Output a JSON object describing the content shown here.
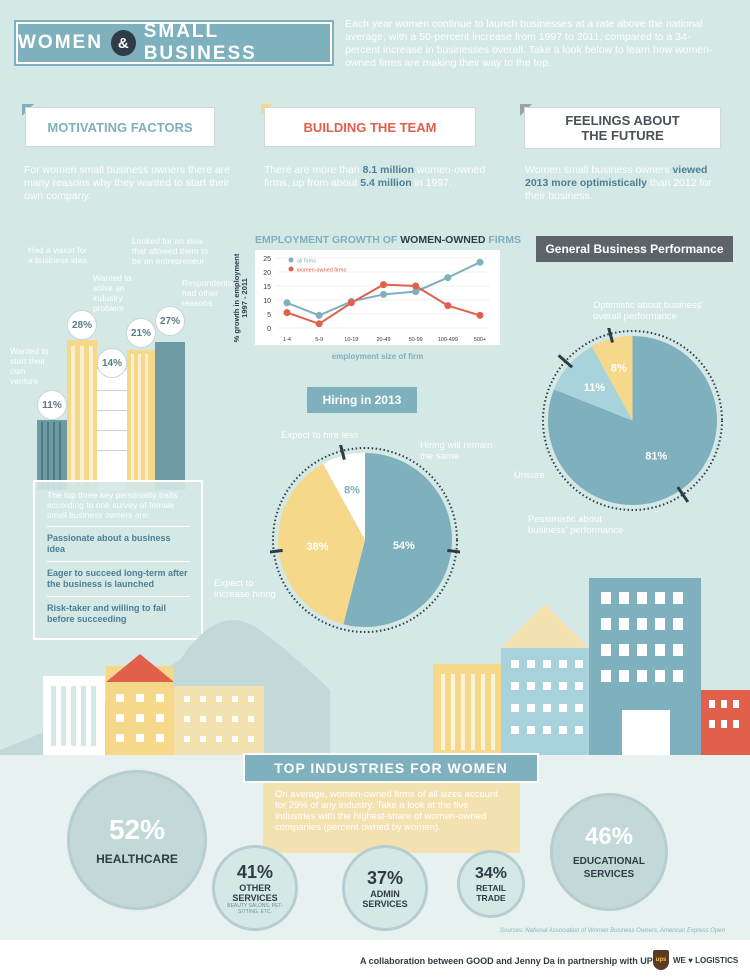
{
  "header": {
    "title_left": "WOMEN",
    "title_amp": "&",
    "title_right": "SMALL BUSINESS",
    "intro": "Each year women continue to launch businesses at a rate above the national average, with a 50-percent increase from 1997 to 2011, compared to a 34-percent increase in businesses overall. Take a look below to learn how women-owned firms are making their way to the top."
  },
  "sections": {
    "motivating": {
      "title": "MOTIVATING FACTORS",
      "desc": "For women small business owners there are many reasons why they wanted to start their own company.",
      "color": "#7fb0bd"
    },
    "team": {
      "title": "BUILDING THE TEAM",
      "desc_pre": "There are more than ",
      "desc_b1": "8.1 million",
      "desc_mid": " women-owned firms, up from about ",
      "desc_b2": "5.4 million",
      "desc_post": " in 1997.",
      "color": "#e0604c"
    },
    "future": {
      "title": "FEELINGS ABOUT THE FUTURE",
      "desc_pre": "Women small business owners ",
      "desc_b1": "viewed 2013 more optimistically",
      "desc_post": " than 2012 for their business.",
      "color": "#4a5257"
    }
  },
  "motivations": [
    {
      "label": "Wanted to start their own venture",
      "pct": "11%"
    },
    {
      "label": "Had a vision for a business idea",
      "pct": "28%"
    },
    {
      "label": "Wanted to solve an industry problem",
      "pct": "14%"
    },
    {
      "label": "Looked for an idea that allowed them to be an entrepreneur",
      "pct": "21%"
    },
    {
      "label": "Respondents had other reasons",
      "pct": "27%"
    }
  ],
  "traits": {
    "intro": "The top three key personality traits according to one survey of female small business owners are:",
    "items": [
      "Passionate about a business idea",
      "Eager to succeed long-term after the business is launched",
      "Risk-taker and willing to fail before succeeding"
    ]
  },
  "chart_data": [
    {
      "type": "line",
      "title_pre": "EMPLOYMENT GROWTH OF ",
      "title_bold": "WOMEN-OWNED",
      "title_post": " FIRMS",
      "xlabel": "employment size of firm",
      "ylabel": "% growth in employment 1997 - 2011",
      "categories": [
        "1-4",
        "5-9",
        "10-19",
        "20-49",
        "50-99",
        "100-499",
        "500+"
      ],
      "ylim": [
        0,
        25
      ],
      "yticks": [
        0,
        5,
        10,
        15,
        20,
        25
      ],
      "series": [
        {
          "name": "all firms",
          "values": [
            9,
            4.5,
            9.5,
            12,
            13,
            18,
            23.5
          ],
          "color": "#7fb0bd"
        },
        {
          "name": "women-owned firms",
          "values": [
            5.5,
            1.5,
            9,
            15.5,
            15,
            8,
            4.5
          ],
          "color": "#e0604c"
        }
      ]
    },
    {
      "type": "pie",
      "title": "Hiring in 2013",
      "slices": [
        {
          "label": "Hiring will remain the same",
          "pct": "54%",
          "value": 54,
          "color": "#7fb0bd"
        },
        {
          "label": "Expect to increase hiring",
          "pct": "38%",
          "value": 38,
          "color": "#f5d88a"
        },
        {
          "label": "Expect to hire less",
          "pct": "8%",
          "value": 8,
          "color": "#ffffff"
        }
      ]
    },
    {
      "type": "pie",
      "title": "General Business Performance",
      "slices": [
        {
          "label": "Optimistic about business' overall performance",
          "pct": "81%",
          "value": 81,
          "color": "#7fb0bd"
        },
        {
          "label": "Pessimistic about business' performance",
          "pct": "11%",
          "value": 11,
          "color": "#a9d3dc"
        },
        {
          "label": "Unsure",
          "pct": "8%",
          "value": 8,
          "color": "#f5d88a"
        }
      ]
    }
  ],
  "industries": {
    "title": "TOP INDUSTRIES FOR WOMEN",
    "note": "On average, women-owned firms of all sizes account for 29% of any industry. Take a look at the five industries with the highest-share of women-owned companies (percent owned by women).",
    "items": [
      {
        "pct": "52%",
        "name": "HEALTHCARE",
        "sub": ""
      },
      {
        "pct": "41%",
        "name": "OTHER SERVICES",
        "sub": "BEAUTY SALONS, PET-SITTING, ETC."
      },
      {
        "pct": "37%",
        "name": "ADMIN SERVICES",
        "sub": ""
      },
      {
        "pct": "34%",
        "name": "RETAIL TRADE",
        "sub": ""
      },
      {
        "pct": "46%",
        "name": "EDUCATIONAL SERVICES",
        "sub": ""
      }
    ]
  },
  "footer": {
    "sources": "Sources: National Association of Women Business Owners, American Express Open",
    "collab": "A collaboration between GOOD and Jenny Da in partnership with UPS",
    "ups": "ups",
    "logistics": "WE ♥ LOGISTICS"
  }
}
